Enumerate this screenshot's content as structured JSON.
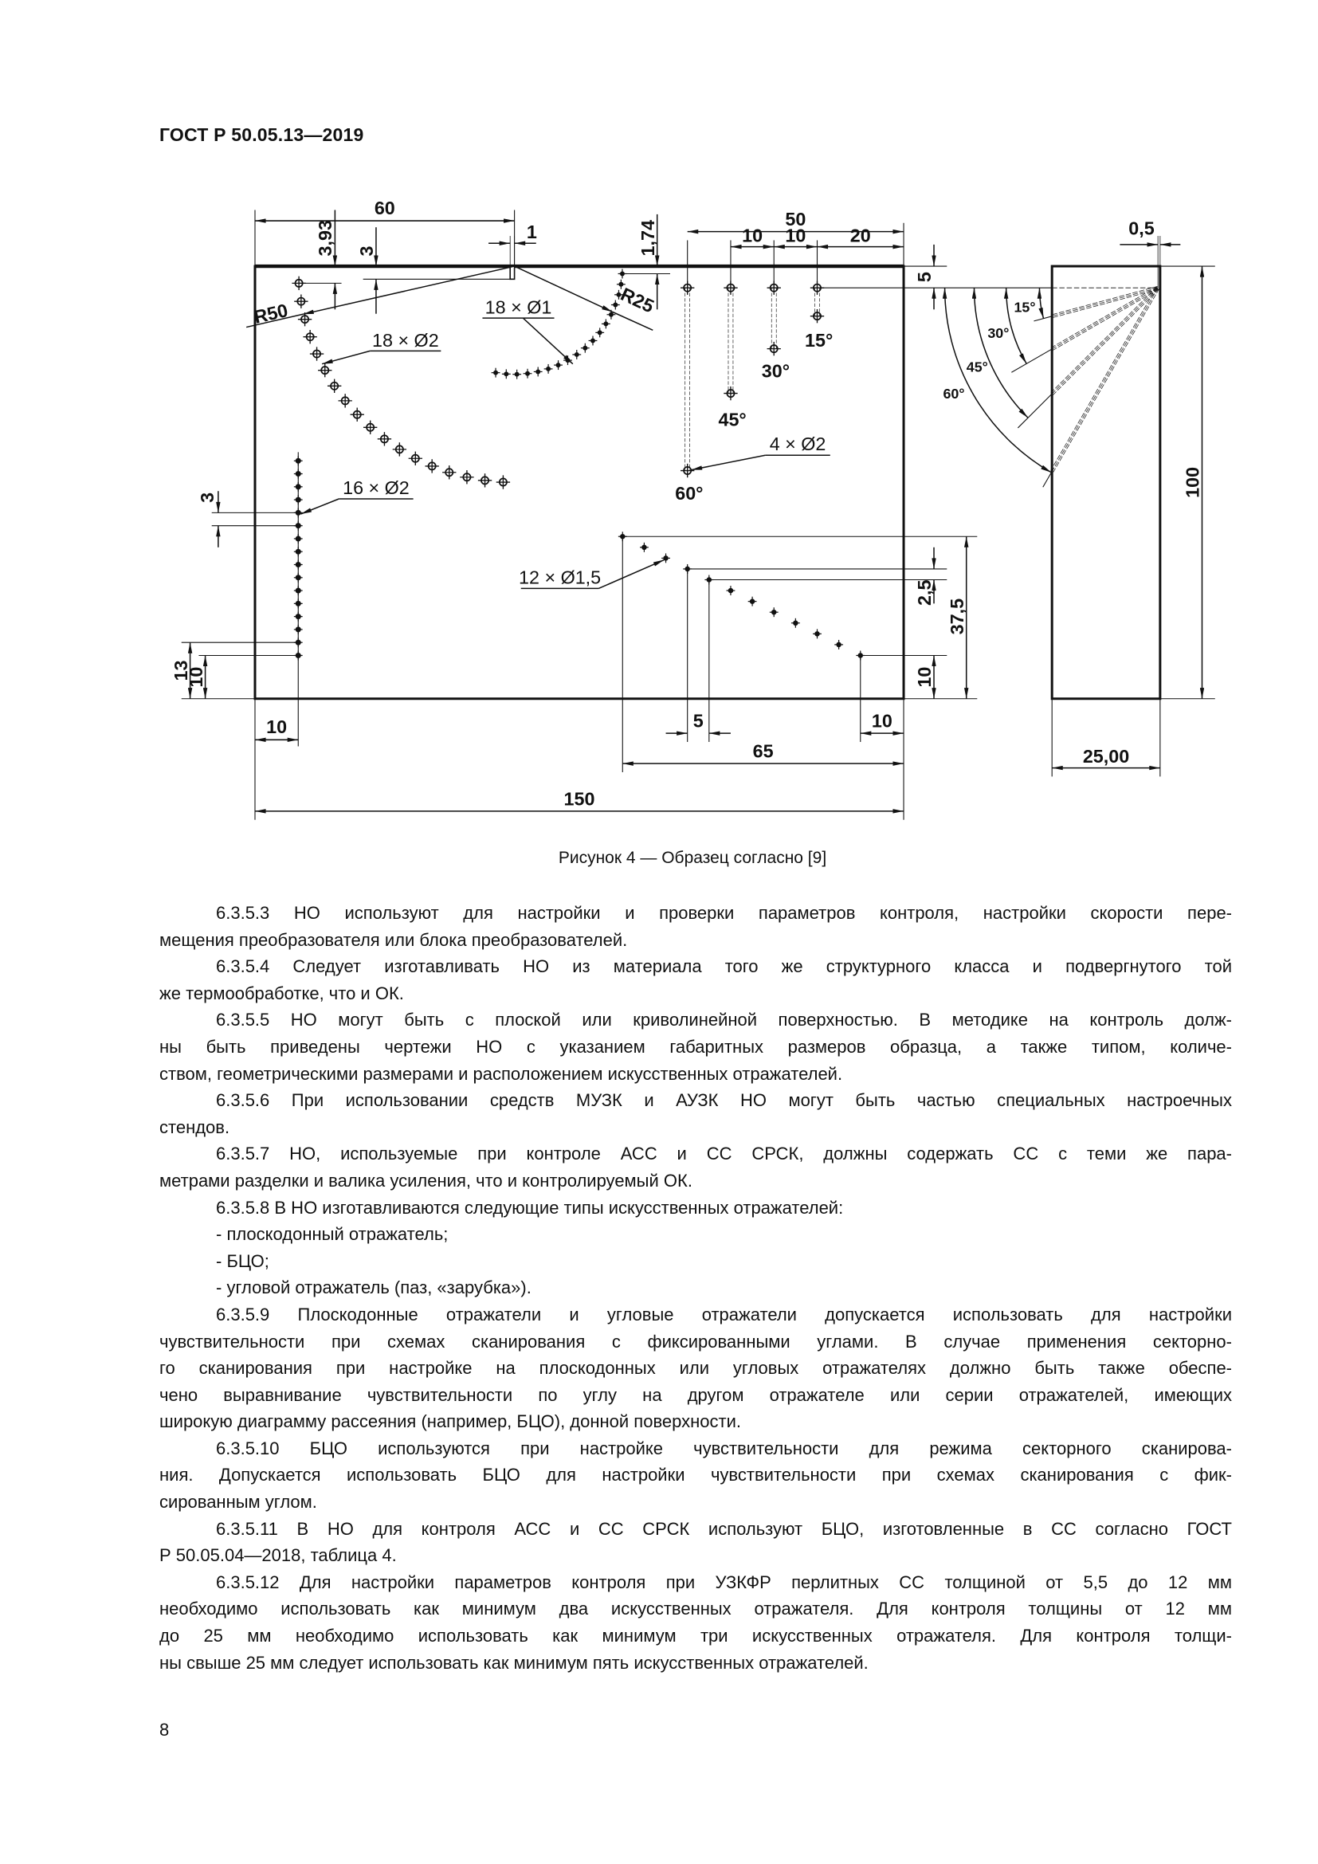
{
  "header": {
    "doc_number": "ГОСТ Р 50.05.13—2019"
  },
  "figure": {
    "dims": {
      "w60": "60",
      "w50": "50",
      "s10a": "10",
      "s10b": "10",
      "s20": "20",
      "notch_w": "1",
      "d393": "3,93",
      "notch_d": "3",
      "d174": "1,74",
      "d5": "5",
      "d05": "0,5",
      "h100": "100",
      "w2500": "25,00",
      "pitch3": "3",
      "h13": "13",
      "h10l": "10",
      "b10l": "10",
      "w150": "150",
      "w65": "65",
      "b5": "5",
      "b10r": "10",
      "p25": "2,5",
      "h375": "37,5",
      "h10r": "10"
    },
    "radii": {
      "r50": "R50",
      "r25": "R25"
    },
    "callouts": {
      "c18x2": "18 × Ø2",
      "c18x1": "18 × Ø1",
      "c16x2": "16 × Ø2",
      "c4x2": "4 × Ø2",
      "c12x15": "12 × Ø1,5"
    },
    "hole_angles": {
      "a15": "15°",
      "a30": "30°",
      "a45": "45°",
      "a60": "60°"
    },
    "beam_angles": {
      "a15": "15°",
      "a30": "30°",
      "a45": "45°",
      "a60": "60°"
    }
  },
  "caption": "Рисунок 4 — Образец согласно [9]",
  "body": {
    "paragraphs": [
      {
        "lines": [
          "6.3.5.3 НО используют для настройки и проверки параметров контроля, настройки скорости пере-",
          "мещения преобразователя или блока преобразователей."
        ]
      },
      {
        "lines": [
          "6.3.5.4 Следует изготавливать НО из материала того же структурного класса и подвергнутого той",
          "же термообработке, что и ОК."
        ]
      },
      {
        "lines": [
          "6.3.5.5 НО могут быть с плоской или криволинейной поверхностью. В методике на контроль долж-",
          "ны быть приведены чертежи НО с указанием габаритных размеров образца, а также типом, количе-",
          "ством, геометрическими размерами и расположением искусственных отражателей."
        ]
      },
      {
        "lines": [
          "6.3.5.6 При использовании средств МУЗК и АУЗК НО могут быть частью специальных настроечных",
          "стендов."
        ]
      },
      {
        "lines": [
          "6.3.5.7 НО, используемые при контроле АСС и СС СРСК, должны содержать СС с теми же пара-",
          "метрами разделки и валика усиления, что и контролируемый ОК."
        ]
      },
      {
        "lines": [
          "6.3.5.8 В НО изготавливаются следующие типы искусственных отражателей:"
        ]
      },
      {
        "lines": [
          "- плоскодонный отражатель;"
        ]
      },
      {
        "lines": [
          "- БЦО;"
        ]
      },
      {
        "lines": [
          "- угловой отражатель (паз, «зарубка»)."
        ]
      },
      {
        "lines": [
          "6.3.5.9 Плоскодонные отражатели и угловые отражатели допускается использовать для настройки",
          "чувствительности при схемах сканирования с фиксированными углами. В случае применения секторно-",
          "го сканирования при настройке на плоскодонных или угловых отражателях должно быть также обеспе-",
          "чено выравнивание чувствительности по углу на другом отражателе или серии отражателей, имеющих",
          "широкую диаграмму рассеяния (например, БЦО), донной поверхности."
        ]
      },
      {
        "lines": [
          "6.3.5.10 БЦО используются при настройке чувствительности для режима секторного сканирова-",
          "ния. Допускается использовать БЦО для настройки чувствительности при схемах сканирования с фик-",
          "сированным углом."
        ]
      },
      {
        "lines": [
          "6.3.5.11 В НО для контроля АСС и СС СРСК используют БЦО, изготовленные в СС согласно ГОСТ",
          "Р 50.05.04—2018, таблица 4."
        ]
      },
      {
        "lines": [
          "6.3.5.12 Для настройки параметров контроля при УЗКФР перлитных СС толщиной от 5,5 до 12 мм",
          "необходимо использовать как минимум два искусственных отражателя. Для контроля толщины от 12 мм",
          "до 25 мм необходимо использовать как минимум три искусственных отражателя. Для контроля толщи-",
          "ны свыше 25 мм следует использовать как минимум пять искусственных отражателей."
        ]
      }
    ]
  },
  "page_number": "8"
}
